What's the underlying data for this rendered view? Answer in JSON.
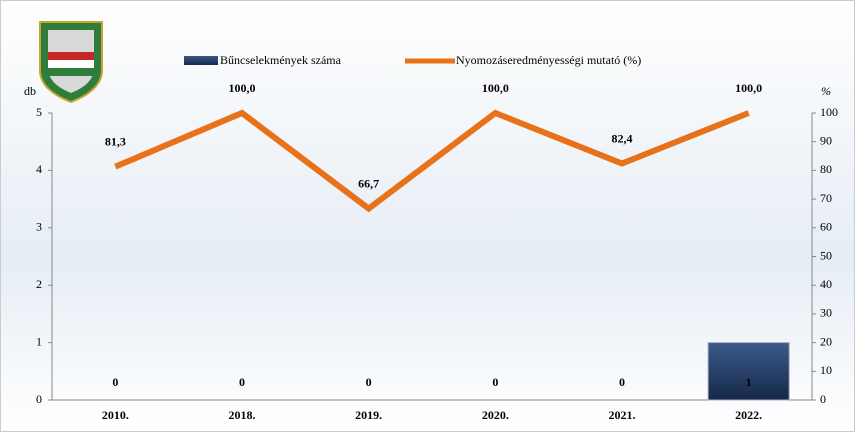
{
  "chart_data": {
    "type": "bar_line",
    "categories": [
      "2010.",
      "2018.",
      "2019.",
      "2020.",
      "2021.",
      "2022."
    ],
    "series": [
      {
        "name": "Bűncselekmények száma",
        "type": "bar",
        "color": "#1f3864",
        "values": [
          0,
          0,
          0,
          0,
          0,
          1
        ]
      },
      {
        "name": "Nyomozáseredményességi mutató (%)",
        "type": "line",
        "axis": "y2",
        "color": "#e8711a",
        "values": [
          81.3,
          100,
          66.7,
          100,
          82.4,
          100
        ],
        "value_labels": [
          "81,3",
          "100,0",
          "66,7",
          "100,0",
          "82,4",
          "100,0"
        ]
      }
    ],
    "ylabel": "db",
    "y2label": "%",
    "ylim": [
      0,
      5
    ],
    "yticks": [
      0,
      1,
      2,
      3,
      4,
      5
    ],
    "y2lim": [
      0,
      100
    ],
    "y2ticks": [
      0,
      10,
      20,
      30,
      40,
      50,
      60,
      70,
      80,
      90,
      100
    ],
    "legend": "top"
  }
}
